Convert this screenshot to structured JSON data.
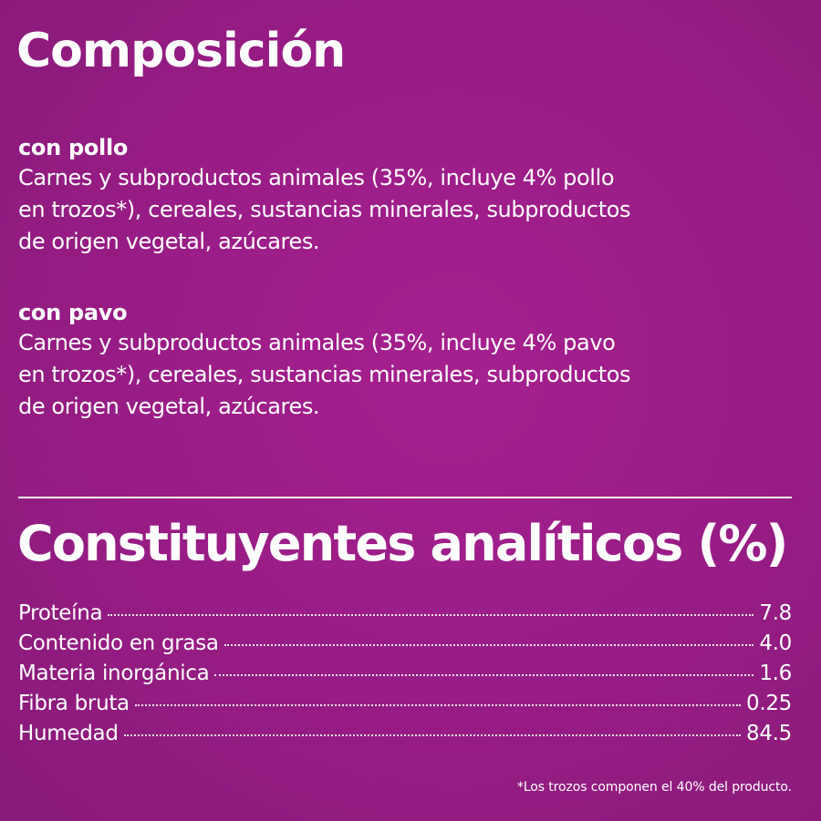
{
  "composition": {
    "title": "Composición",
    "sections": [
      {
        "heading": "con pollo",
        "lines": [
          "Carnes y subproductos animales (35%, incluye 4% pollo",
          "en trozos*), cereales, sustancias minerales, subproductos",
          "de origen vegetal, azúcares."
        ]
      },
      {
        "heading": "con pavo",
        "lines": [
          "Carnes y subproductos animales (35%, incluye 4% pavo",
          "en trozos*), cereales, sustancias minerales, subproductos",
          "de origen vegetal, azúcares."
        ]
      }
    ]
  },
  "analytic": {
    "title": "Constituyentes analíticos (%)",
    "rows": [
      {
        "label": "Proteína",
        "value": "7.8"
      },
      {
        "label": "Contenido en grasa",
        "value": "4.0"
      },
      {
        "label": "Materia inorgánica",
        "value": "1.6"
      },
      {
        "label": "Fibra bruta",
        "value": "0.25"
      },
      {
        "label": "Humedad",
        "value": "84.5"
      }
    ]
  },
  "footnote": "*Los trozos componen el 40% del producto.",
  "colors": {
    "background": "#9a1d87",
    "text": "#ffffff"
  }
}
